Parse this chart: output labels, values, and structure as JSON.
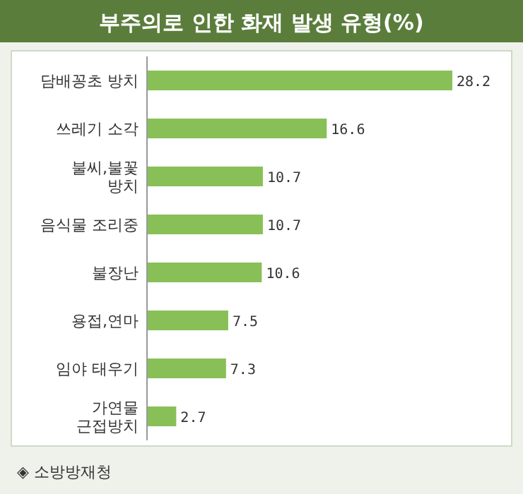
{
  "chart_data": {
    "type": "bar",
    "orientation": "horizontal",
    "title": "부주의로 인한 화재 발생 유형(%)",
    "categories": [
      "담배꽁초 방치",
      "쓰레기 소각",
      "불씨,불꽃\n방치",
      "음식물 조리중",
      "불장난",
      "용접,연마",
      "임야 태우기",
      "가연물\n근접방치"
    ],
    "values": [
      28.2,
      16.6,
      10.7,
      10.7,
      10.6,
      7.5,
      7.3,
      2.7
    ],
    "color": "#88c057",
    "data_labels": true,
    "annotations": [
      "◈ 소방방재청"
    ]
  }
}
